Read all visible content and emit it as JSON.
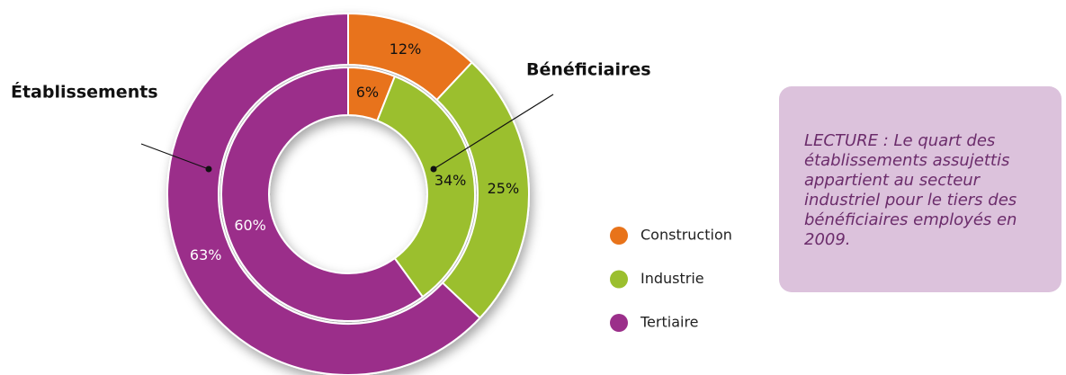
{
  "chart_data": {
    "type": "donut",
    "categories": [
      "Construction",
      "Industrie",
      "Tertiaire"
    ],
    "colors": [
      "#e8731a",
      "#9bbf2e",
      "#9b2f8a"
    ],
    "series": [
      {
        "name": "Établissements",
        "values": [
          12,
          25,
          63
        ],
        "value_labels": [
          "12%",
          "25%",
          "63%"
        ]
      },
      {
        "name": "Bénéficiaires",
        "values": [
          6,
          34,
          60
        ],
        "value_labels": [
          "6%",
          "34%",
          "60%"
        ]
      }
    ],
    "annotation": "LECTURE : Le quart des établissements assujettis appartient au secteur industriel pour le tiers des bénéficiaires employés en 2009."
  }
}
